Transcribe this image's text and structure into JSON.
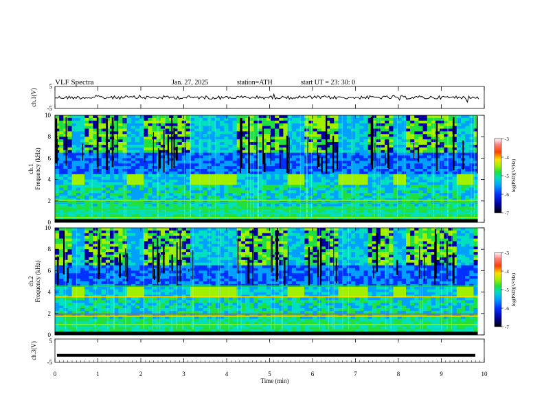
{
  "header": {
    "title": "VLF  Spectra",
    "date": "Jan. 27, 2025",
    "station": "station=ATH",
    "start": "start  UT  =    23: 30: 0"
  },
  "chart_data": [
    {
      "type": "line",
      "id": "ch1-waveform",
      "ylabel": "ch.1(V)",
      "ylim": [
        -5,
        5
      ],
      "yticks": [
        "5",
        "-5"
      ],
      "xlim": [
        0,
        10
      ],
      "description_series": "noisy waveform around 0 V"
    },
    {
      "type": "heatmap",
      "id": "ch1-spectrogram",
      "ylabel": [
        "ch.1",
        "Frequency  (kHz)"
      ],
      "ylim": [
        0,
        10
      ],
      "yticks": [
        "0",
        "2",
        "4",
        "6",
        "8",
        "10"
      ],
      "xlim": [
        0,
        10
      ],
      "colorbar": {
        "label": "log(PSD)(V²/Hz)",
        "range": [
          -7,
          -3
        ],
        "ticks": [
          "-3",
          "-4",
          "-5",
          "-6",
          "-7"
        ]
      },
      "band_segments_min": [
        [
          0.35,
          0.6
        ],
        [
          1.7,
          2.0
        ],
        [
          3.2,
          4.2
        ],
        [
          5.5,
          5.8
        ],
        [
          6.7,
          7.3
        ],
        [
          8.0,
          8.2
        ],
        [
          9.5,
          9.8
        ]
      ]
    },
    {
      "type": "heatmap",
      "id": "ch2-spectrogram",
      "ylabel": [
        "ch.2",
        "Frequency  (kHz)"
      ],
      "ylim": [
        0,
        10
      ],
      "yticks": [
        "0",
        "2",
        "4",
        "6",
        "8",
        "10"
      ],
      "xlim": [
        0,
        10
      ],
      "colorbar": {
        "label": "log(PSD)(V²/Hz)",
        "range": [
          -7,
          -3
        ],
        "ticks": [
          "-3",
          "-4",
          "-5",
          "-6",
          "-7"
        ]
      },
      "band_segments_min": [
        [
          0.35,
          0.6
        ],
        [
          1.7,
          2.0
        ],
        [
          3.2,
          4.2
        ],
        [
          5.5,
          5.8
        ],
        [
          6.7,
          7.3
        ],
        [
          8.0,
          8.2
        ],
        [
          9.5,
          9.8
        ]
      ]
    },
    {
      "type": "line",
      "id": "ch3-waveform",
      "ylabel": "ch.3(V)",
      "ylim": [
        -5,
        5
      ],
      "yticks": [
        "5",
        "-5"
      ],
      "xlim": [
        0,
        10
      ],
      "series": [
        {
          "x": [
            0,
            10
          ],
          "y": [
            -2,
            -2
          ]
        }
      ]
    }
  ],
  "xaxis": {
    "label": "Time  (min)",
    "ticks": [
      "0",
      "1",
      "2",
      "3",
      "4",
      "5",
      "6",
      "7",
      "8",
      "9",
      "10"
    ]
  },
  "colors": {
    "waveform": "#000000",
    "scale": [
      "#000000",
      "#0000a0",
      "#0030ff",
      "#00a0ff",
      "#00e0c0",
      "#20e040",
      "#a0f000",
      "#ffe000",
      "#ff4000",
      "#ff8080",
      "#ffffff"
    ]
  }
}
